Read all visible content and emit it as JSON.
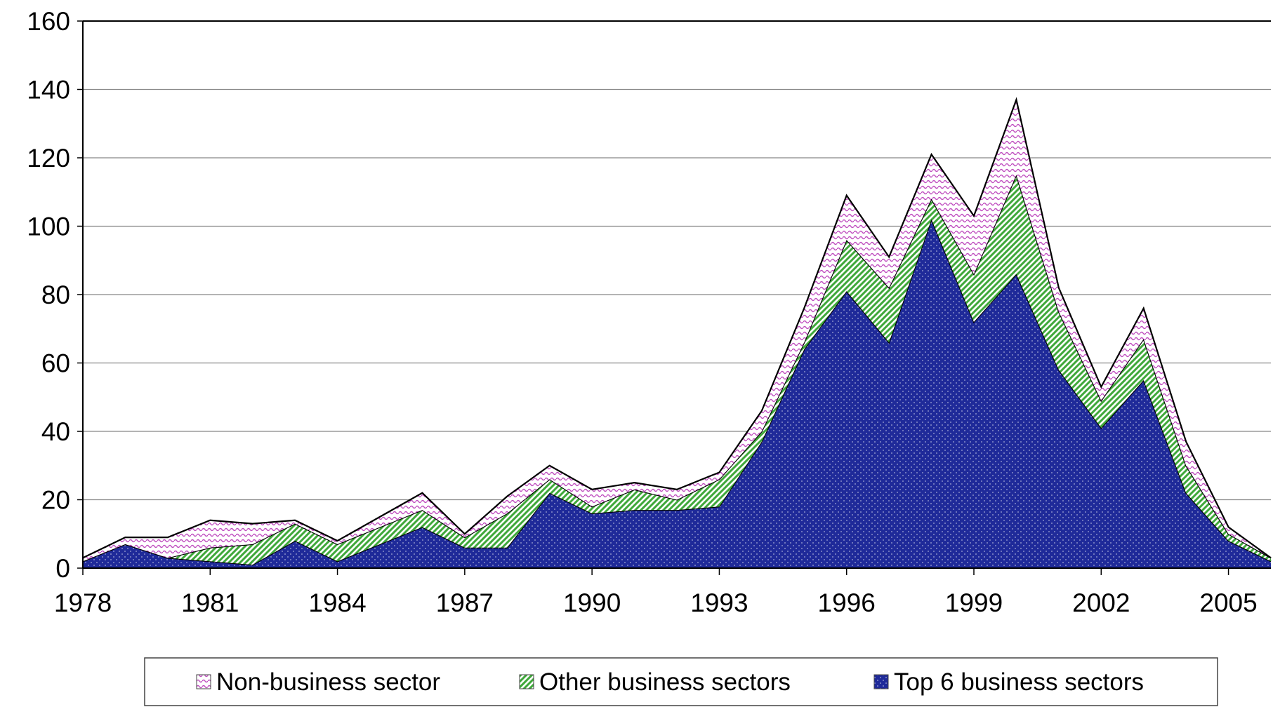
{
  "chart_data": {
    "type": "stacked-area",
    "x": [
      1978,
      1979,
      1980,
      1981,
      1982,
      1983,
      1984,
      1985,
      1986,
      1987,
      1988,
      1989,
      1990,
      1991,
      1992,
      1993,
      1994,
      1995,
      1996,
      1997,
      1998,
      1999,
      2000,
      2001,
      2002,
      2003,
      2004,
      2005,
      2006
    ],
    "xlim": [
      1978,
      2006
    ],
    "xticks": [
      1978,
      1981,
      1984,
      1987,
      1990,
      1993,
      1996,
      1999,
      2002,
      2005
    ],
    "ylim": [
      0,
      160
    ],
    "yticks": [
      0,
      20,
      40,
      60,
      80,
      100,
      120,
      140,
      160
    ],
    "grid": true,
    "legend": "bottom",
    "series": [
      {
        "name": "Top 6 business sectors",
        "color": "#1f2a99",
        "pattern": "dots",
        "values": [
          2,
          7,
          3,
          2,
          1,
          8,
          2,
          7,
          12,
          6,
          6,
          22,
          16,
          17,
          17,
          18,
          37,
          64,
          81,
          66,
          102,
          72,
          86,
          58,
          41,
          55,
          22,
          8,
          2
        ]
      },
      {
        "name": "Other business sectors",
        "color": "#3fa83a",
        "pattern": "stripes",
        "values": [
          0,
          0,
          0,
          4,
          6,
          5,
          5,
          5,
          5,
          3,
          10,
          4,
          2,
          6,
          3,
          8,
          3,
          2,
          15,
          16,
          6,
          14,
          29,
          17,
          8,
          12,
          8,
          2,
          1
        ]
      },
      {
        "name": "Non-business sector",
        "color": "#c050c0",
        "pattern": "waves",
        "values": [
          1,
          2,
          6,
          8,
          6,
          1,
          1,
          3,
          5,
          1,
          5,
          4,
          5,
          2,
          3,
          2,
          6,
          10,
          13,
          9,
          13,
          17,
          22,
          7,
          4,
          9,
          7,
          2,
          0
        ]
      }
    ]
  }
}
